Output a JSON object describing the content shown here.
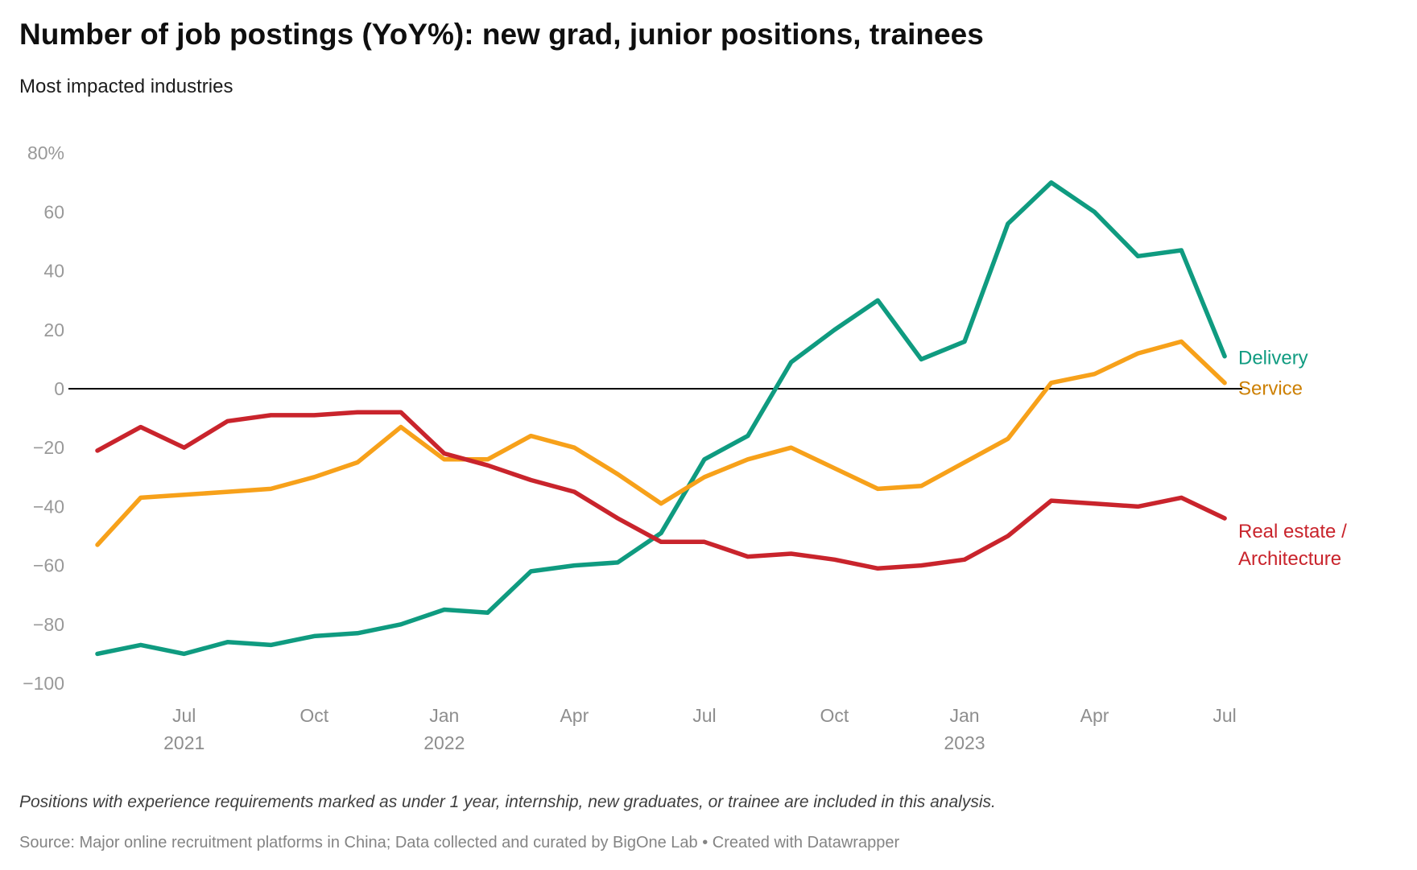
{
  "header": {
    "title": "Number of job postings (YoY%): new grad, junior positions, trainees",
    "subtitle": "Most impacted industries"
  },
  "footer": {
    "note": "Positions with experience requirements marked as under 1 year, internship, new graduates, or trainee are included in this analysis.",
    "source": "Source: Major online recruitment platforms in China; Data collected and curated by BigOne Lab • Created with Datawrapper"
  },
  "chart_data": {
    "type": "line",
    "title": "Number of job postings (YoY%): new grad, junior positions, trainees",
    "subtitle": "Most impacted industries",
    "xlabel": "",
    "ylabel": "YoY %",
    "ylim": [
      -100,
      80
    ],
    "grid": false,
    "zero_line": true,
    "legend_position": "right of line ends",
    "x": [
      "May 2021",
      "Jun 2021",
      "Jul 2021",
      "Aug 2021",
      "Sep 2021",
      "Oct 2021",
      "Nov 2021",
      "Dec 2021",
      "Jan 2022",
      "Feb 2022",
      "Mar 2022",
      "Apr 2022",
      "May 2022",
      "Jun 2022",
      "Jul 2022",
      "Aug 2022",
      "Sep 2022",
      "Oct 2022",
      "Nov 2022",
      "Dec 2022",
      "Jan 2023",
      "Feb 2023",
      "Mar 2023",
      "Apr 2023",
      "May 2023",
      "Jun 2023",
      "Jul 2023"
    ],
    "series": [
      {
        "name": "Delivery",
        "color": "#0f9b80",
        "label_lines": [
          "Delivery"
        ],
        "values": [
          -90,
          -87,
          -90,
          -86,
          -87,
          -84,
          -83,
          -80,
          -75,
          -76,
          -62,
          -60,
          -59,
          -49,
          -24,
          -16,
          9,
          20,
          30,
          10,
          16,
          56,
          70,
          60,
          45,
          47,
          11
        ]
      },
      {
        "name": "Service",
        "color": "#f7a11a",
        "label_color": "#cd8004",
        "label_lines": [
          "Service"
        ],
        "values": [
          -53,
          -37,
          -36,
          -35,
          -34,
          -30,
          -25,
          -13,
          -24,
          -24,
          -16,
          -20,
          -29,
          -39,
          -30,
          -24,
          -20,
          -27,
          -34,
          -33,
          -25,
          -17,
          2,
          5,
          12,
          16,
          2
        ]
      },
      {
        "name": "Real estate / Architecture",
        "color": "#c9242c",
        "label_lines": [
          "Real estate /",
          "Architecture"
        ],
        "values": [
          -21,
          -13,
          -20,
          -11,
          -9,
          -9,
          -8,
          -8,
          -22,
          -26,
          -31,
          -35,
          -44,
          -52,
          -52,
          -57,
          -56,
          -58,
          -61,
          -60,
          -58,
          -50,
          -38,
          -39,
          -40,
          -37,
          -44
        ]
      }
    ],
    "yticks": [
      {
        "value": 80,
        "label": "80%"
      },
      {
        "value": 60,
        "label": "60"
      },
      {
        "value": 40,
        "label": "40"
      },
      {
        "value": 20,
        "label": "20"
      },
      {
        "value": 0,
        "label": "0"
      },
      {
        "value": -20,
        "label": "−20"
      },
      {
        "value": -40,
        "label": "−40"
      },
      {
        "value": -60,
        "label": "−60"
      },
      {
        "value": -80,
        "label": "−80"
      },
      {
        "value": -100,
        "label": "−100"
      }
    ],
    "xticks": [
      {
        "index": 2,
        "label": "Jul",
        "year": "2021"
      },
      {
        "index": 5,
        "label": "Oct",
        "year": ""
      },
      {
        "index": 8,
        "label": "Jan",
        "year": "2022"
      },
      {
        "index": 11,
        "label": "Apr",
        "year": ""
      },
      {
        "index": 14,
        "label": "Jul",
        "year": ""
      },
      {
        "index": 17,
        "label": "Oct",
        "year": ""
      },
      {
        "index": 20,
        "label": "Jan",
        "year": "2023"
      },
      {
        "index": 23,
        "label": "Apr",
        "year": ""
      },
      {
        "index": 26,
        "label": "Jul",
        "year": ""
      }
    ]
  },
  "colors": {
    "zero_line": "#000000",
    "axis_text": "#8e8e8e",
    "background": "#ffffff"
  }
}
